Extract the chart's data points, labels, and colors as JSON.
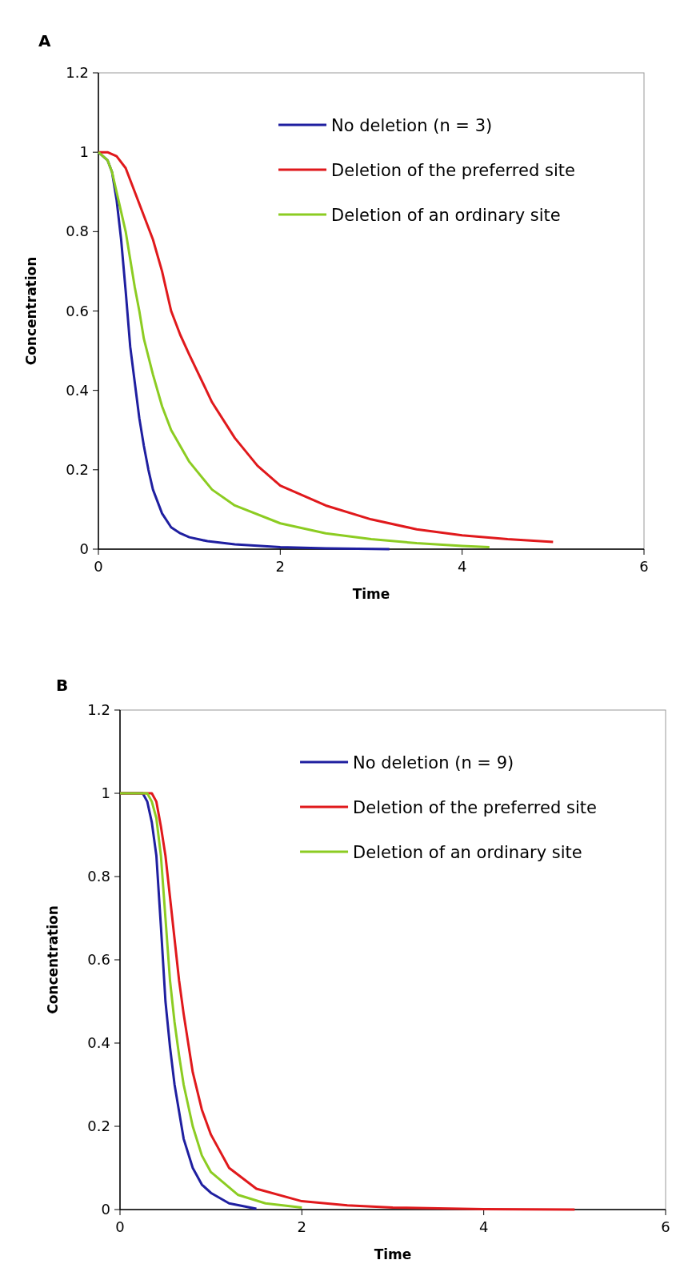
{
  "chart_data": [
    {
      "type": "line",
      "title": "A",
      "xlabel": "Time",
      "ylabel": "Concentration",
      "xlim": [
        0,
        6
      ],
      "xticks": [
        0,
        2,
        4,
        6
      ],
      "ylim": [
        0,
        1.2
      ],
      "yticks": [
        0,
        0.2,
        0.4,
        0.6,
        0.8,
        1,
        1.2
      ],
      "grid": false,
      "legend": "top right",
      "line_style": "solid",
      "series": [
        {
          "name": "No deletion (n = 3)",
          "color": "#1f1fa0",
          "x": [
            0,
            0.1,
            0.15,
            0.2,
            0.25,
            0.3,
            0.35,
            0.4,
            0.45,
            0.5,
            0.55,
            0.6,
            0.7,
            0.8,
            0.9,
            1,
            1.2,
            1.5,
            2,
            2.5,
            3.2
          ],
          "values": [
            1,
            0.98,
            0.95,
            0.88,
            0.78,
            0.65,
            0.51,
            0.42,
            0.33,
            0.26,
            0.2,
            0.15,
            0.09,
            0.055,
            0.04,
            0.03,
            0.02,
            0.012,
            0.005,
            0.002,
            0
          ]
        },
        {
          "name": "Deletion of the preferred site",
          "color": "#e0191c",
          "x": [
            0,
            0.1,
            0.2,
            0.3,
            0.4,
            0.5,
            0.6,
            0.7,
            0.8,
            0.9,
            1,
            1.25,
            1.5,
            1.75,
            2,
            2.5,
            3,
            3.5,
            4,
            4.5,
            5
          ],
          "values": [
            1,
            1,
            0.99,
            0.96,
            0.9,
            0.84,
            0.78,
            0.7,
            0.6,
            0.54,
            0.49,
            0.37,
            0.28,
            0.21,
            0.16,
            0.11,
            0.075,
            0.05,
            0.035,
            0.025,
            0.018
          ]
        },
        {
          "name": "Deletion of an ordinary site",
          "color": "#8ccc22",
          "x": [
            0,
            0.1,
            0.15,
            0.2,
            0.3,
            0.4,
            0.45,
            0.5,
            0.6,
            0.7,
            0.8,
            1,
            1.25,
            1.5,
            2,
            2.5,
            3,
            3.5,
            4,
            4.3
          ],
          "values": [
            1,
            0.98,
            0.95,
            0.9,
            0.8,
            0.66,
            0.6,
            0.53,
            0.44,
            0.36,
            0.3,
            0.22,
            0.15,
            0.11,
            0.065,
            0.04,
            0.025,
            0.015,
            0.008,
            0.005
          ]
        }
      ]
    },
    {
      "type": "line",
      "title": "B",
      "xlabel": "Time",
      "ylabel": "Concentration",
      "xlim": [
        0,
        6
      ],
      "xticks": [
        0,
        2,
        4,
        6
      ],
      "ylim": [
        0,
        1.2
      ],
      "yticks": [
        0,
        0.2,
        0.4,
        0.6,
        0.8,
        1,
        1.2
      ],
      "grid": false,
      "legend": "top right",
      "line_style": "solid",
      "series": [
        {
          "name": "No deletion (n = 9)",
          "color": "#1f1fa0",
          "x": [
            0,
            0.25,
            0.3,
            0.35,
            0.4,
            0.45,
            0.5,
            0.55,
            0.6,
            0.7,
            0.8,
            0.9,
            1,
            1.2,
            1.5
          ],
          "values": [
            1,
            1,
            0.98,
            0.93,
            0.85,
            0.68,
            0.5,
            0.39,
            0.3,
            0.17,
            0.1,
            0.06,
            0.04,
            0.015,
            0.002
          ]
        },
        {
          "name": "Deletion of the preferred site",
          "color": "#e0191c",
          "x": [
            0,
            0.3,
            0.35,
            0.4,
            0.45,
            0.5,
            0.55,
            0.6,
            0.65,
            0.7,
            0.8,
            0.9,
            1,
            1.2,
            1.5,
            2,
            2.5,
            3,
            3.5,
            4,
            5
          ],
          "values": [
            1,
            1,
            1,
            0.98,
            0.92,
            0.85,
            0.75,
            0.65,
            0.55,
            0.47,
            0.33,
            0.24,
            0.18,
            0.1,
            0.05,
            0.02,
            0.01,
            0.005,
            0.003,
            0.001,
            0
          ]
        },
        {
          "name": "Deletion of an ordinary site",
          "color": "#8ccc22",
          "x": [
            0,
            0.3,
            0.35,
            0.4,
            0.45,
            0.5,
            0.55,
            0.6,
            0.65,
            0.7,
            0.8,
            0.9,
            1,
            1.3,
            1.6,
            2
          ],
          "values": [
            1,
            1,
            0.98,
            0.94,
            0.85,
            0.7,
            0.55,
            0.45,
            0.37,
            0.3,
            0.2,
            0.13,
            0.09,
            0.035,
            0.015,
            0.005
          ]
        }
      ]
    }
  ]
}
